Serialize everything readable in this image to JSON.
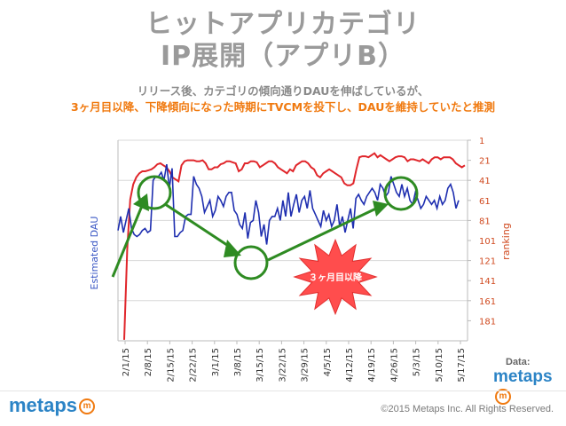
{
  "header": {
    "title_line1": "ヒットアプリカテゴリ",
    "title_line2": "IP展開（アプリB）",
    "subtitle_line1": "リリース後、カテゴリの傾向通りDAUを伸ばしているが、",
    "subtitle_line2": "3ヶ月目以降、下降傾向になった時期にTVCMを投下し、DAUを維持していたと推測"
  },
  "footer": {
    "brand": "metaps",
    "copyright": "©2015 Metaps Inc. All Rights Reserved.",
    "data_label": "Data:"
  },
  "colors": {
    "dau": "#1f2fb0",
    "ranking": "#e0262b",
    "annotation": "#2e8b22",
    "burst": "#ff4d4d"
  },
  "chart_data": {
    "type": "line",
    "xlabel": "",
    "ylabel_left": "Estimated DAU",
    "ylabel_right": "ranking",
    "x_tick_labels": [
      "2/1/15",
      "2/8/15",
      "2/15/15",
      "2/22/15",
      "3/1/15",
      "3/8/15",
      "3/15/15",
      "3/22/15",
      "3/29/15",
      "4/5/15",
      "4/12/15",
      "4/19/15",
      "4/26/15",
      "5/3/15",
      "5/10/15",
      "5/17/15"
    ],
    "right_axis_ticks": [
      "1",
      "21",
      "41",
      "61",
      "81",
      "101",
      "121",
      "141",
      "161",
      "181"
    ],
    "right_ylim": [
      1,
      201
    ],
    "right_axis_inverted": true,
    "grid": "horizontal",
    "annotation": "３ヶ月目以降",
    "series": [
      {
        "name": "ranking",
        "axis": "right",
        "values": [
          200,
          110,
          60,
          45,
          38,
          34,
          32,
          32,
          31,
          30,
          28,
          25,
          24,
          26,
          28,
          32,
          38,
          40,
          42,
          26,
          22,
          21,
          21,
          21,
          22,
          22,
          21,
          24,
          30,
          30,
          28,
          28,
          25,
          24,
          22,
          22,
          23,
          24,
          32,
          30,
          24,
          24,
          22,
          22,
          23,
          28,
          26,
          24,
          22,
          22,
          24,
          28,
          30,
          32,
          34,
          30,
          32,
          26,
          24,
          22,
          22,
          24,
          28,
          30,
          36,
          38,
          34,
          32,
          30,
          32,
          34,
          36,
          38,
          44,
          46,
          46,
          44,
          30,
          18,
          17,
          17,
          18,
          16,
          14,
          18,
          16,
          18,
          20,
          22,
          20,
          18,
          17,
          17,
          18,
          22,
          20,
          20,
          21,
          22,
          20,
          22,
          24,
          20,
          18,
          18,
          20,
          18,
          18,
          18,
          20,
          24,
          26,
          28,
          26
        ]
      },
      {
        "name": "dau",
        "axis": "left",
        "values": [
          0.55,
          0.62,
          0.54,
          0.6,
          0.66,
          0.56,
          0.53,
          0.52,
          0.53,
          0.55,
          0.56,
          0.54,
          0.55,
          0.8,
          0.82,
          0.82,
          0.84,
          0.8,
          0.88,
          0.76,
          0.86,
          0.52,
          0.52,
          0.54,
          0.55,
          0.62,
          0.63,
          0.63,
          0.82,
          0.78,
          0.76,
          0.72,
          0.64,
          0.67,
          0.7,
          0.62,
          0.65,
          0.72,
          0.7,
          0.67,
          0.72,
          0.74,
          0.74,
          0.65,
          0.63,
          0.58,
          0.56,
          0.64,
          0.51,
          0.59,
          0.6,
          0.7,
          0.64,
          0.52,
          0.58,
          0.48,
          0.6,
          0.62,
          0.62,
          0.66,
          0.6,
          0.7,
          0.62,
          0.74,
          0.62,
          0.68,
          0.73,
          0.64,
          0.7,
          0.72,
          0.66,
          0.75,
          0.66,
          0.63,
          0.6,
          0.57,
          0.65,
          0.6,
          0.63,
          0.57,
          0.6,
          0.68,
          0.57,
          0.62,
          0.54,
          0.6,
          0.66,
          0.56,
          0.71,
          0.73,
          0.7,
          0.68,
          0.72,
          0.74,
          0.76,
          0.74,
          0.7,
          0.78,
          0.76,
          0.72,
          0.74,
          0.82,
          0.78,
          0.74,
          0.72,
          0.78,
          0.72,
          0.76,
          0.7,
          0.68,
          0.74,
          0.7,
          0.66,
          0.68,
          0.72,
          0.7,
          0.68,
          0.7,
          0.66,
          0.72,
          0.68,
          0.7,
          0.76,
          0.78,
          0.74,
          0.66,
          0.7
        ]
      }
    ]
  }
}
